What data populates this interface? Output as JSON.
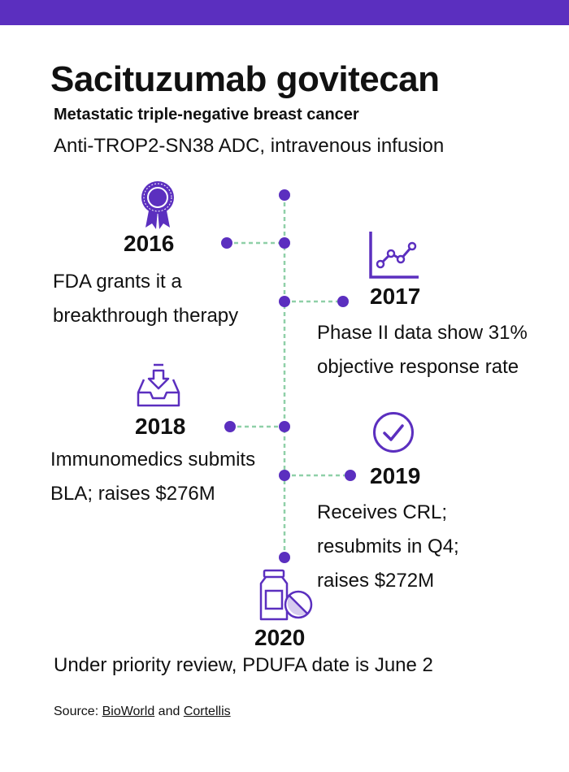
{
  "header": {
    "title": "Sacituzumab govitecan",
    "subtitle": "Metastatic triple-negative breast cancer",
    "description": "Anti-TROP2-SN38 ADC, intravenous infusion"
  },
  "colors": {
    "accent": "#5b2fbf",
    "connector": "#8fd0a8",
    "text": "#111111"
  },
  "events": [
    {
      "year": "2016",
      "text_lines": [
        "FDA grants it a",
        "breakthrough therapy"
      ],
      "icon": "award-ribbon-icon"
    },
    {
      "year": "2017",
      "text_lines": [
        "Phase II data show 31%",
        "objective response rate"
      ],
      "icon": "line-chart-icon"
    },
    {
      "year": "2018",
      "text_lines": [
        "Immunomedics submits",
        "BLA; raises $276M"
      ],
      "icon": "inbox-download-icon"
    },
    {
      "year": "2019",
      "text_lines": [
        "Receives CRL;",
        "resubmits in Q4;",
        "raises $272M"
      ],
      "icon": "check-circle-icon"
    },
    {
      "year": "2020",
      "text_lines": [
        "Under priority review, PDUFA date is June 2"
      ],
      "icon": "pill-bottle-icon"
    }
  ],
  "footer": {
    "source_prefix": "Source:",
    "link1": "BioWorld",
    "conjunction": "and",
    "link2": "Cortellis"
  }
}
